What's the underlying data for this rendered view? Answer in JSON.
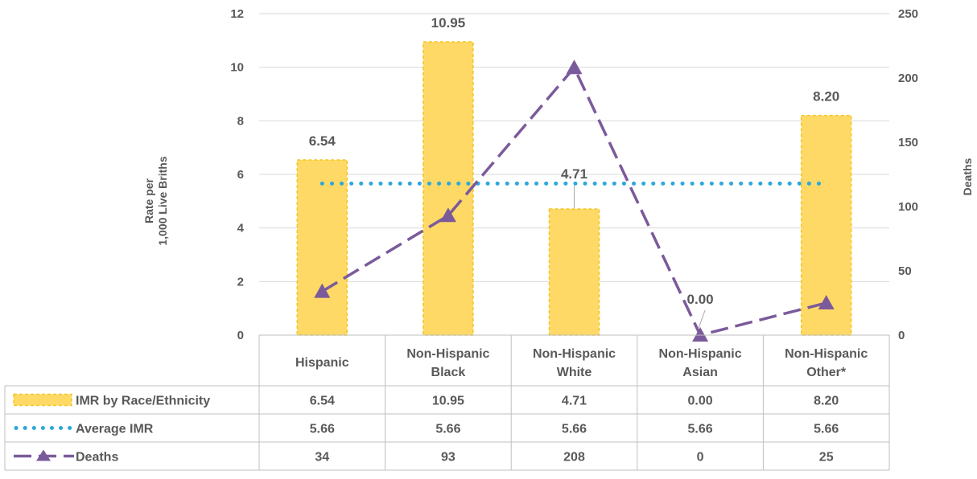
{
  "title_fragment": "",
  "chart_data": {
    "type": "bar",
    "categories": [
      [
        "Hispanic"
      ],
      [
        "Non-Hispanic",
        "Black"
      ],
      [
        "Non-Hispanic",
        "White"
      ],
      [
        "Non-Hispanic",
        "Asian"
      ],
      [
        "Non-Hispanic",
        "Other*"
      ]
    ],
    "series": [
      {
        "name": "IMR by Race/Ethnicity",
        "type": "bar",
        "axis": "left",
        "values": [
          6.54,
          10.95,
          4.71,
          0.0,
          8.2
        ],
        "labels": [
          "6.54",
          "10.95",
          "4.71",
          "0.00",
          "8.20"
        ],
        "color": "#FFD966",
        "border": "#F2C624"
      },
      {
        "name": "Average IMR",
        "type": "line",
        "style": "dotted",
        "axis": "left",
        "values": [
          5.66,
          5.66,
          5.66,
          5.66,
          5.66
        ],
        "labels": [
          "5.66",
          "5.66",
          "5.66",
          "5.66",
          "5.66"
        ],
        "color": "#2EA8DB"
      },
      {
        "name": "Deaths",
        "type": "line",
        "style": "dashed",
        "marker": "triangle",
        "axis": "right",
        "values": [
          34,
          93,
          208,
          0,
          25
        ],
        "labels": [
          "34",
          "93",
          "208",
          "0",
          "25"
        ],
        "color": "#7B5A9B"
      }
    ],
    "ylabel": [
      "Rate per",
      "1,000 Live Briths"
    ],
    "y2label": "Deaths",
    "ylim": [
      0,
      12
    ],
    "yticks": [
      "0",
      "2",
      "4",
      "6",
      "8",
      "10",
      "12"
    ],
    "y2lim": [
      0,
      250
    ],
    "y2ticks": [
      "0",
      "50",
      "100",
      "150",
      "200",
      "250"
    ],
    "grid": true,
    "legend": "data-table"
  }
}
